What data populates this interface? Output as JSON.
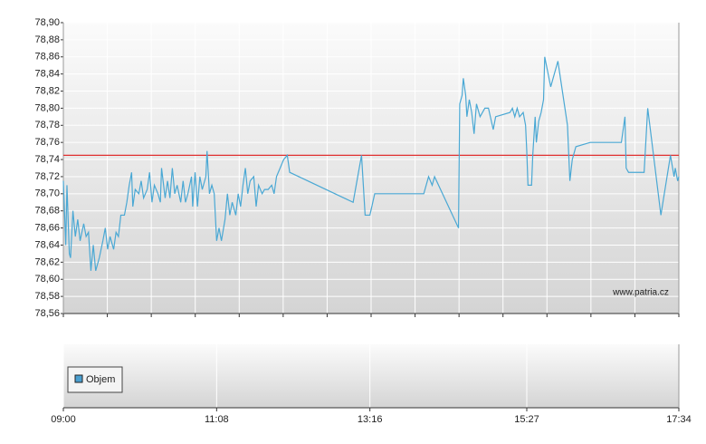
{
  "chart_data": {
    "type": "line",
    "x": [
      "09:00",
      "09:02",
      "09:03",
      "09:05",
      "09:06",
      "09:08",
      "09:10",
      "09:12",
      "09:14",
      "09:17",
      "09:19",
      "09:21",
      "09:23",
      "09:25",
      "09:27",
      "09:30",
      "09:33",
      "09:35",
      "09:37",
      "09:39",
      "09:42",
      "09:44",
      "09:46",
      "09:48",
      "09:51",
      "09:53",
      "09:55",
      "09:57",
      "09:58",
      "10:00",
      "10:03",
      "10:05",
      "10:07",
      "10:10",
      "10:12",
      "10:14",
      "10:16",
      "10:19",
      "10:21",
      "10:22",
      "10:25",
      "10:27",
      "10:29",
      "10:31",
      "10:33",
      "10:35",
      "10:38",
      "10:40",
      "10:42",
      "10:44",
      "10:47",
      "10:48",
      "10:50",
      "10:52",
      "10:54",
      "10:56",
      "10:59",
      "11:00",
      "11:02",
      "11:04",
      "11:06",
      "11:08",
      "11:10",
      "11:12",
      "11:15",
      "11:17",
      "11:19",
      "11:21",
      "11:24",
      "11:26",
      "11:28",
      "11:30",
      "11:32",
      "11:34",
      "11:36",
      "11:39",
      "11:41",
      "11:43",
      "11:46",
      "11:48",
      "11:51",
      "11:54",
      "11:56",
      "11:58",
      "12:01",
      "12:04",
      "12:07",
      "12:09",
      "13:02",
      "13:09",
      "13:12",
      "13:16",
      "13:20",
      "14:01",
      "14:05",
      "14:08",
      "14:10",
      "14:30",
      "14:31",
      "14:33",
      "14:34",
      "14:36",
      "14:37",
      "14:39",
      "14:41",
      "14:43",
      "14:45",
      "14:48",
      "14:52",
      "14:55",
      "14:59",
      "15:01",
      "15:13",
      "15:15",
      "15:17",
      "15:19",
      "15:21",
      "15:24",
      "15:26",
      "15:27",
      "15:28",
      "15:31",
      "15:32",
      "15:34",
      "15:35",
      "15:37",
      "15:39",
      "15:41",
      "15:42",
      "15:47",
      "15:53",
      "16:01",
      "16:03",
      "16:05",
      "16:08",
      "16:20",
      "16:46",
      "16:49",
      "16:50",
      "16:52",
      "17:05",
      "17:08",
      "17:19",
      "17:27",
      "17:30",
      "17:31",
      "17:33",
      "17:34"
    ],
    "values": [
      78.715,
      78.64,
      78.71,
      78.63,
      78.625,
      78.68,
      78.65,
      78.67,
      78.645,
      78.665,
      78.65,
      78.655,
      78.61,
      78.64,
      78.61,
      78.625,
      78.645,
      78.66,
      78.635,
      78.65,
      78.635,
      78.655,
      78.65,
      78.675,
      78.675,
      78.69,
      78.71,
      78.725,
      78.685,
      78.705,
      78.7,
      78.715,
      78.695,
      78.705,
      78.725,
      78.69,
      78.71,
      78.7,
      78.69,
      78.73,
      78.695,
      78.715,
      78.695,
      78.73,
      78.7,
      78.71,
      78.69,
      78.715,
      78.69,
      78.7,
      78.72,
      78.685,
      78.725,
      78.685,
      78.72,
      78.705,
      78.72,
      78.75,
      78.7,
      78.71,
      78.7,
      78.645,
      78.66,
      78.645,
      78.67,
      78.7,
      78.675,
      78.69,
      78.675,
      78.7,
      78.685,
      78.71,
      78.73,
      78.7,
      78.715,
      78.72,
      78.685,
      78.71,
      78.7,
      78.705,
      78.705,
      78.71,
      78.7,
      78.72,
      78.73,
      78.74,
      78.745,
      78.725,
      78.69,
      78.745,
      78.675,
      78.675,
      78.7,
      78.7,
      78.72,
      78.71,
      78.72,
      78.66,
      78.805,
      78.815,
      78.835,
      78.815,
      78.79,
      78.81,
      78.795,
      78.77,
      78.805,
      78.79,
      78.8,
      78.8,
      78.775,
      78.79,
      78.795,
      78.8,
      78.79,
      78.8,
      78.79,
      78.795,
      78.78,
      78.75,
      78.71,
      78.71,
      78.745,
      78.79,
      78.76,
      78.785,
      78.795,
      78.81,
      78.86,
      78.825,
      78.855,
      78.78,
      78.715,
      78.74,
      78.755,
      78.76,
      78.76,
      78.79,
      78.73,
      78.725,
      78.725,
      78.8,
      78.675,
      78.745,
      78.72,
      78.73,
      78.715,
      78.72
    ],
    "color": "#4aa8d4",
    "ylim": [
      78.56,
      78.9
    ],
    "yticks": [
      {
        "value": 78.56,
        "label": "78,56"
      },
      {
        "value": 78.58,
        "label": "78,58"
      },
      {
        "value": 78.6,
        "label": "78,60"
      },
      {
        "value": 78.62,
        "label": "78,62"
      },
      {
        "value": 78.64,
        "label": "78,64"
      },
      {
        "value": 78.66,
        "label": "78,66"
      },
      {
        "value": 78.68,
        "label": "78,68"
      },
      {
        "value": 78.7,
        "label": "78,70"
      },
      {
        "value": 78.72,
        "label": "78,72"
      },
      {
        "value": 78.74,
        "label": "78,74"
      },
      {
        "value": 78.76,
        "label": "78,76"
      },
      {
        "value": 78.78,
        "label": "78,78"
      },
      {
        "value": 78.8,
        "label": "78,80"
      },
      {
        "value": 78.82,
        "label": "78,82"
      },
      {
        "value": 78.84,
        "label": "78,84"
      },
      {
        "value": 78.86,
        "label": "78,86"
      },
      {
        "value": 78.88,
        "label": "78,88"
      },
      {
        "value": 78.9,
        "label": "78,90"
      }
    ],
    "xlim": [
      "09:00",
      "17:34"
    ],
    "xticks": [
      "09:00",
      "11:08",
      "13:16",
      "15:27",
      "17:34"
    ],
    "ref_line": {
      "value": 78.745,
      "color": "#e03030"
    },
    "volume_legend": {
      "name": "Objem",
      "color": "#4a9fd0"
    },
    "watermark": "www.patria.cz",
    "grid": true
  }
}
